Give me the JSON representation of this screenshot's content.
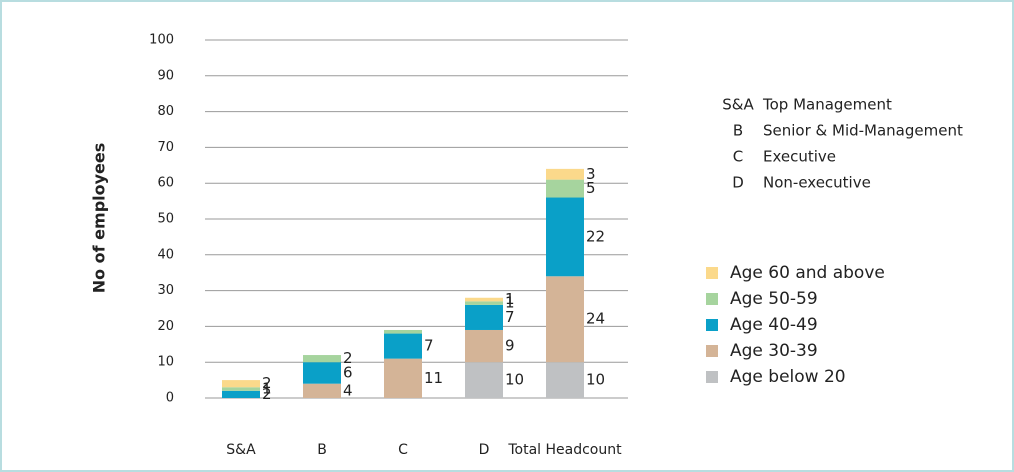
{
  "chart_data": {
    "type": "stacked_bar",
    "y_label": "No of employees",
    "categories": [
      "S&A",
      "B",
      "C",
      "D",
      "Total Headcount"
    ],
    "series": [
      {
        "name": "Age below 20",
        "color": "#bfc1c3",
        "values": [
          null,
          null,
          null,
          10,
          10
        ]
      },
      {
        "name": "Age 30-39",
        "color": "#d4b497",
        "values": [
          null,
          4,
          11,
          9,
          24
        ]
      },
      {
        "name": "Age 40-49",
        "color": "#0aa0c8",
        "values": [
          2,
          6,
          7,
          7,
          22
        ]
      },
      {
        "name": "Age 50-59",
        "color": "#a6d49e",
        "values": [
          1,
          2,
          1,
          1,
          5
        ],
        "value_labels": [
          "1",
          "2",
          null,
          "1",
          "5"
        ]
      },
      {
        "name": "Age 60 and above",
        "color": "#fbd98b",
        "values": [
          2,
          null,
          null,
          1,
          3
        ]
      }
    ],
    "notes": [
      {
        "code": "S&A",
        "text": "Top Management"
      },
      {
        "code": "B",
        "text": "Senior & Mid-Management"
      },
      {
        "code": "C",
        "text": "Executive"
      },
      {
        "code": "D",
        "text": "Non-executive"
      }
    ],
    "ylim": [
      0,
      100
    ],
    "yticks": [
      0,
      10,
      20,
      30,
      40,
      50,
      60,
      70,
      80,
      90,
      100
    ],
    "grid": true,
    "legend": "right"
  }
}
